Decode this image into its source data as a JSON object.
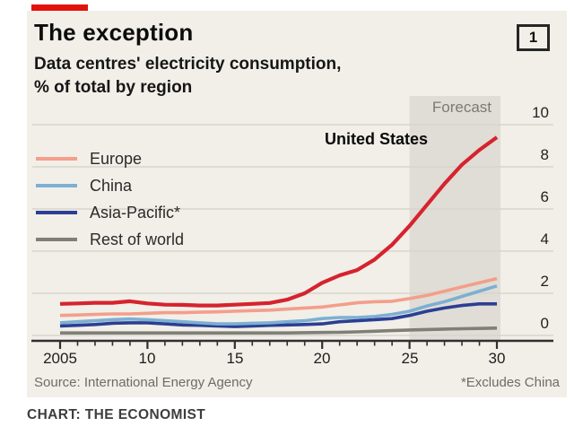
{
  "header": {
    "title": "The exception",
    "index_badge": "1",
    "subtitle_line1": "Data centres' electricity consumption,",
    "subtitle_line2": "% of total by region"
  },
  "footer": {
    "source": "Source: International Energy Agency",
    "footnote": "*Excludes China"
  },
  "credit": "CHART: THE ECONOMIST",
  "brand_colors": {
    "accent_red": "#e3120b",
    "card_background": "#f1efe8"
  },
  "chart_data": {
    "type": "line",
    "title": "The exception",
    "subtitle": "Data centres' electricity consumption, % of total by region",
    "x": [
      2005,
      2006,
      2007,
      2008,
      2009,
      2010,
      2011,
      2012,
      2013,
      2014,
      2015,
      2016,
      2017,
      2018,
      2019,
      2020,
      2021,
      2022,
      2023,
      2024,
      2025,
      2026,
      2027,
      2028,
      2029,
      2030
    ],
    "x_label_years": [
      2005,
      2010,
      2015,
      2020,
      2025,
      2030
    ],
    "x_tick_labels": [
      "2005",
      "10",
      "15",
      "20",
      "25",
      "30"
    ],
    "ylim": [
      0,
      10
    ],
    "y_ticks": [
      0,
      2,
      4,
      6,
      8,
      10
    ],
    "y_tick_labels": [
      "0",
      "2",
      "4",
      "6",
      "8",
      "10"
    ],
    "grid": true,
    "legend_position": "upper-left",
    "annotation": "United States",
    "forecast": {
      "label": "Forecast",
      "start": 2025,
      "end": 2030
    },
    "colors": {
      "band": "#dfddd5",
      "grid": "#d7d5cb",
      "axis": "#2f2f2f"
    },
    "series": [
      {
        "name": "United States",
        "color": "#d6232e",
        "values": [
          1.5,
          1.52,
          1.55,
          1.55,
          1.62,
          1.52,
          1.46,
          1.45,
          1.42,
          1.42,
          1.46,
          1.5,
          1.54,
          1.7,
          2.0,
          2.5,
          2.85,
          3.1,
          3.6,
          4.3,
          5.2,
          6.2,
          7.2,
          8.1,
          8.8,
          9.4
        ]
      },
      {
        "name": "Europe",
        "color": "#f49e8c",
        "values": [
          0.95,
          0.97,
          1.0,
          1.02,
          1.02,
          1.05,
          1.08,
          1.08,
          1.1,
          1.12,
          1.15,
          1.18,
          1.2,
          1.25,
          1.3,
          1.35,
          1.45,
          1.55,
          1.6,
          1.62,
          1.75,
          1.9,
          2.1,
          2.3,
          2.5,
          2.7
        ]
      },
      {
        "name": "China",
        "color": "#7dafd3",
        "values": [
          0.6,
          0.65,
          0.7,
          0.75,
          0.78,
          0.75,
          0.7,
          0.65,
          0.6,
          0.55,
          0.55,
          0.58,
          0.6,
          0.65,
          0.7,
          0.8,
          0.85,
          0.85,
          0.9,
          1.0,
          1.15,
          1.4,
          1.6,
          1.85,
          2.1,
          2.35
        ]
      },
      {
        "name": "Asia-Pacific*",
        "color": "#2c3e93",
        "values": [
          0.45,
          0.48,
          0.52,
          0.58,
          0.6,
          0.6,
          0.55,
          0.5,
          0.48,
          0.45,
          0.42,
          0.45,
          0.48,
          0.5,
          0.52,
          0.55,
          0.65,
          0.7,
          0.75,
          0.8,
          0.95,
          1.15,
          1.3,
          1.42,
          1.5,
          1.5
        ]
      },
      {
        "name": "Rest of world",
        "color": "#7f7f78",
        "values": [
          0.12,
          0.12,
          0.12,
          0.12,
          0.12,
          0.12,
          0.12,
          0.12,
          0.12,
          0.12,
          0.12,
          0.12,
          0.12,
          0.12,
          0.13,
          0.14,
          0.15,
          0.17,
          0.2,
          0.23,
          0.26,
          0.28,
          0.3,
          0.32,
          0.33,
          0.35
        ]
      }
    ]
  }
}
